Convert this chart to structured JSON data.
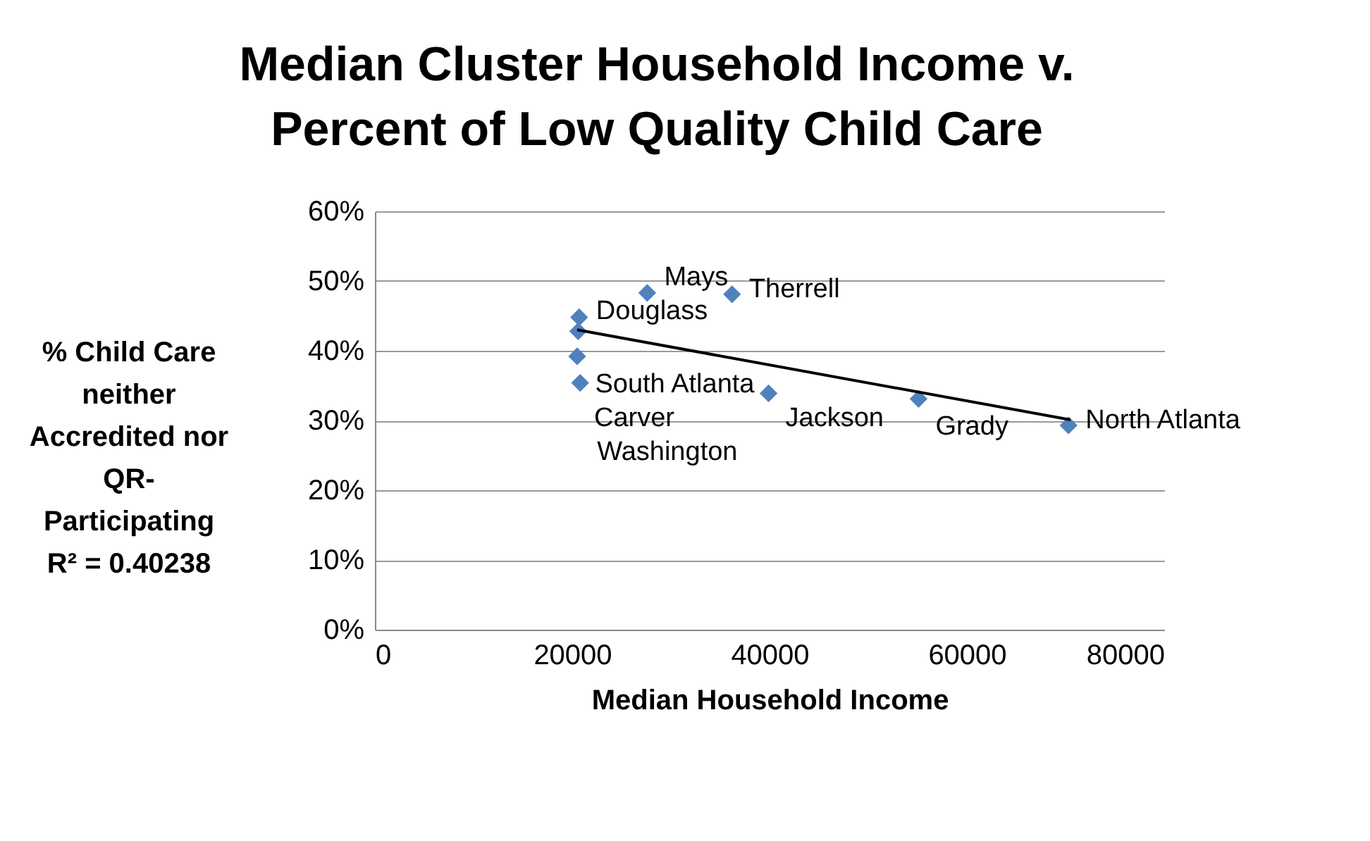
{
  "chart_data": {
    "type": "scatter",
    "title": "Median Cluster Household Income v.\nPercent of Low Quality Child Care",
    "xlabel": "Median Household Income",
    "ylabel": "% Child Care\nneither\nAccredited nor\nQR-\nParticipating",
    "annotations": [
      "R² = 0.40238"
    ],
    "xlim": [
      0,
      80000
    ],
    "xticks": [
      0,
      20000,
      40000,
      60000,
      80000
    ],
    "ylim": [
      0,
      60
    ],
    "yticks": [
      {
        "value": 0,
        "label": "0%"
      },
      {
        "value": 10,
        "label": "10%"
      },
      {
        "value": 20,
        "label": "20%"
      },
      {
        "value": 30,
        "label": "30%"
      },
      {
        "value": 40,
        "label": "40%"
      },
      {
        "value": 50,
        "label": "50%"
      },
      {
        "value": 60,
        "label": "60%"
      }
    ],
    "grid": "y",
    "series": [
      {
        "type": "scatter",
        "color": "#4f81bd",
        "marker": "diamond",
        "x": [
          20700,
          20600,
          20500,
          20800,
          27600,
          36200,
          39900,
          55100,
          70300
        ],
        "values": [
          44.8,
          42.8,
          39.2,
          35.4,
          48.3,
          48.1,
          33.9,
          33.1,
          29.3
        ],
        "value_labels": [
          "Douglass",
          "South Atlanta",
          "Carver",
          "Washington",
          "Mays",
          "Therrell",
          "Jackson",
          "Grady",
          "North Atlanta"
        ]
      },
      {
        "type": "line",
        "color": "#000000",
        "x": [
          20500,
          70500
        ],
        "values": [
          43.0,
          30.1
        ]
      }
    ]
  }
}
